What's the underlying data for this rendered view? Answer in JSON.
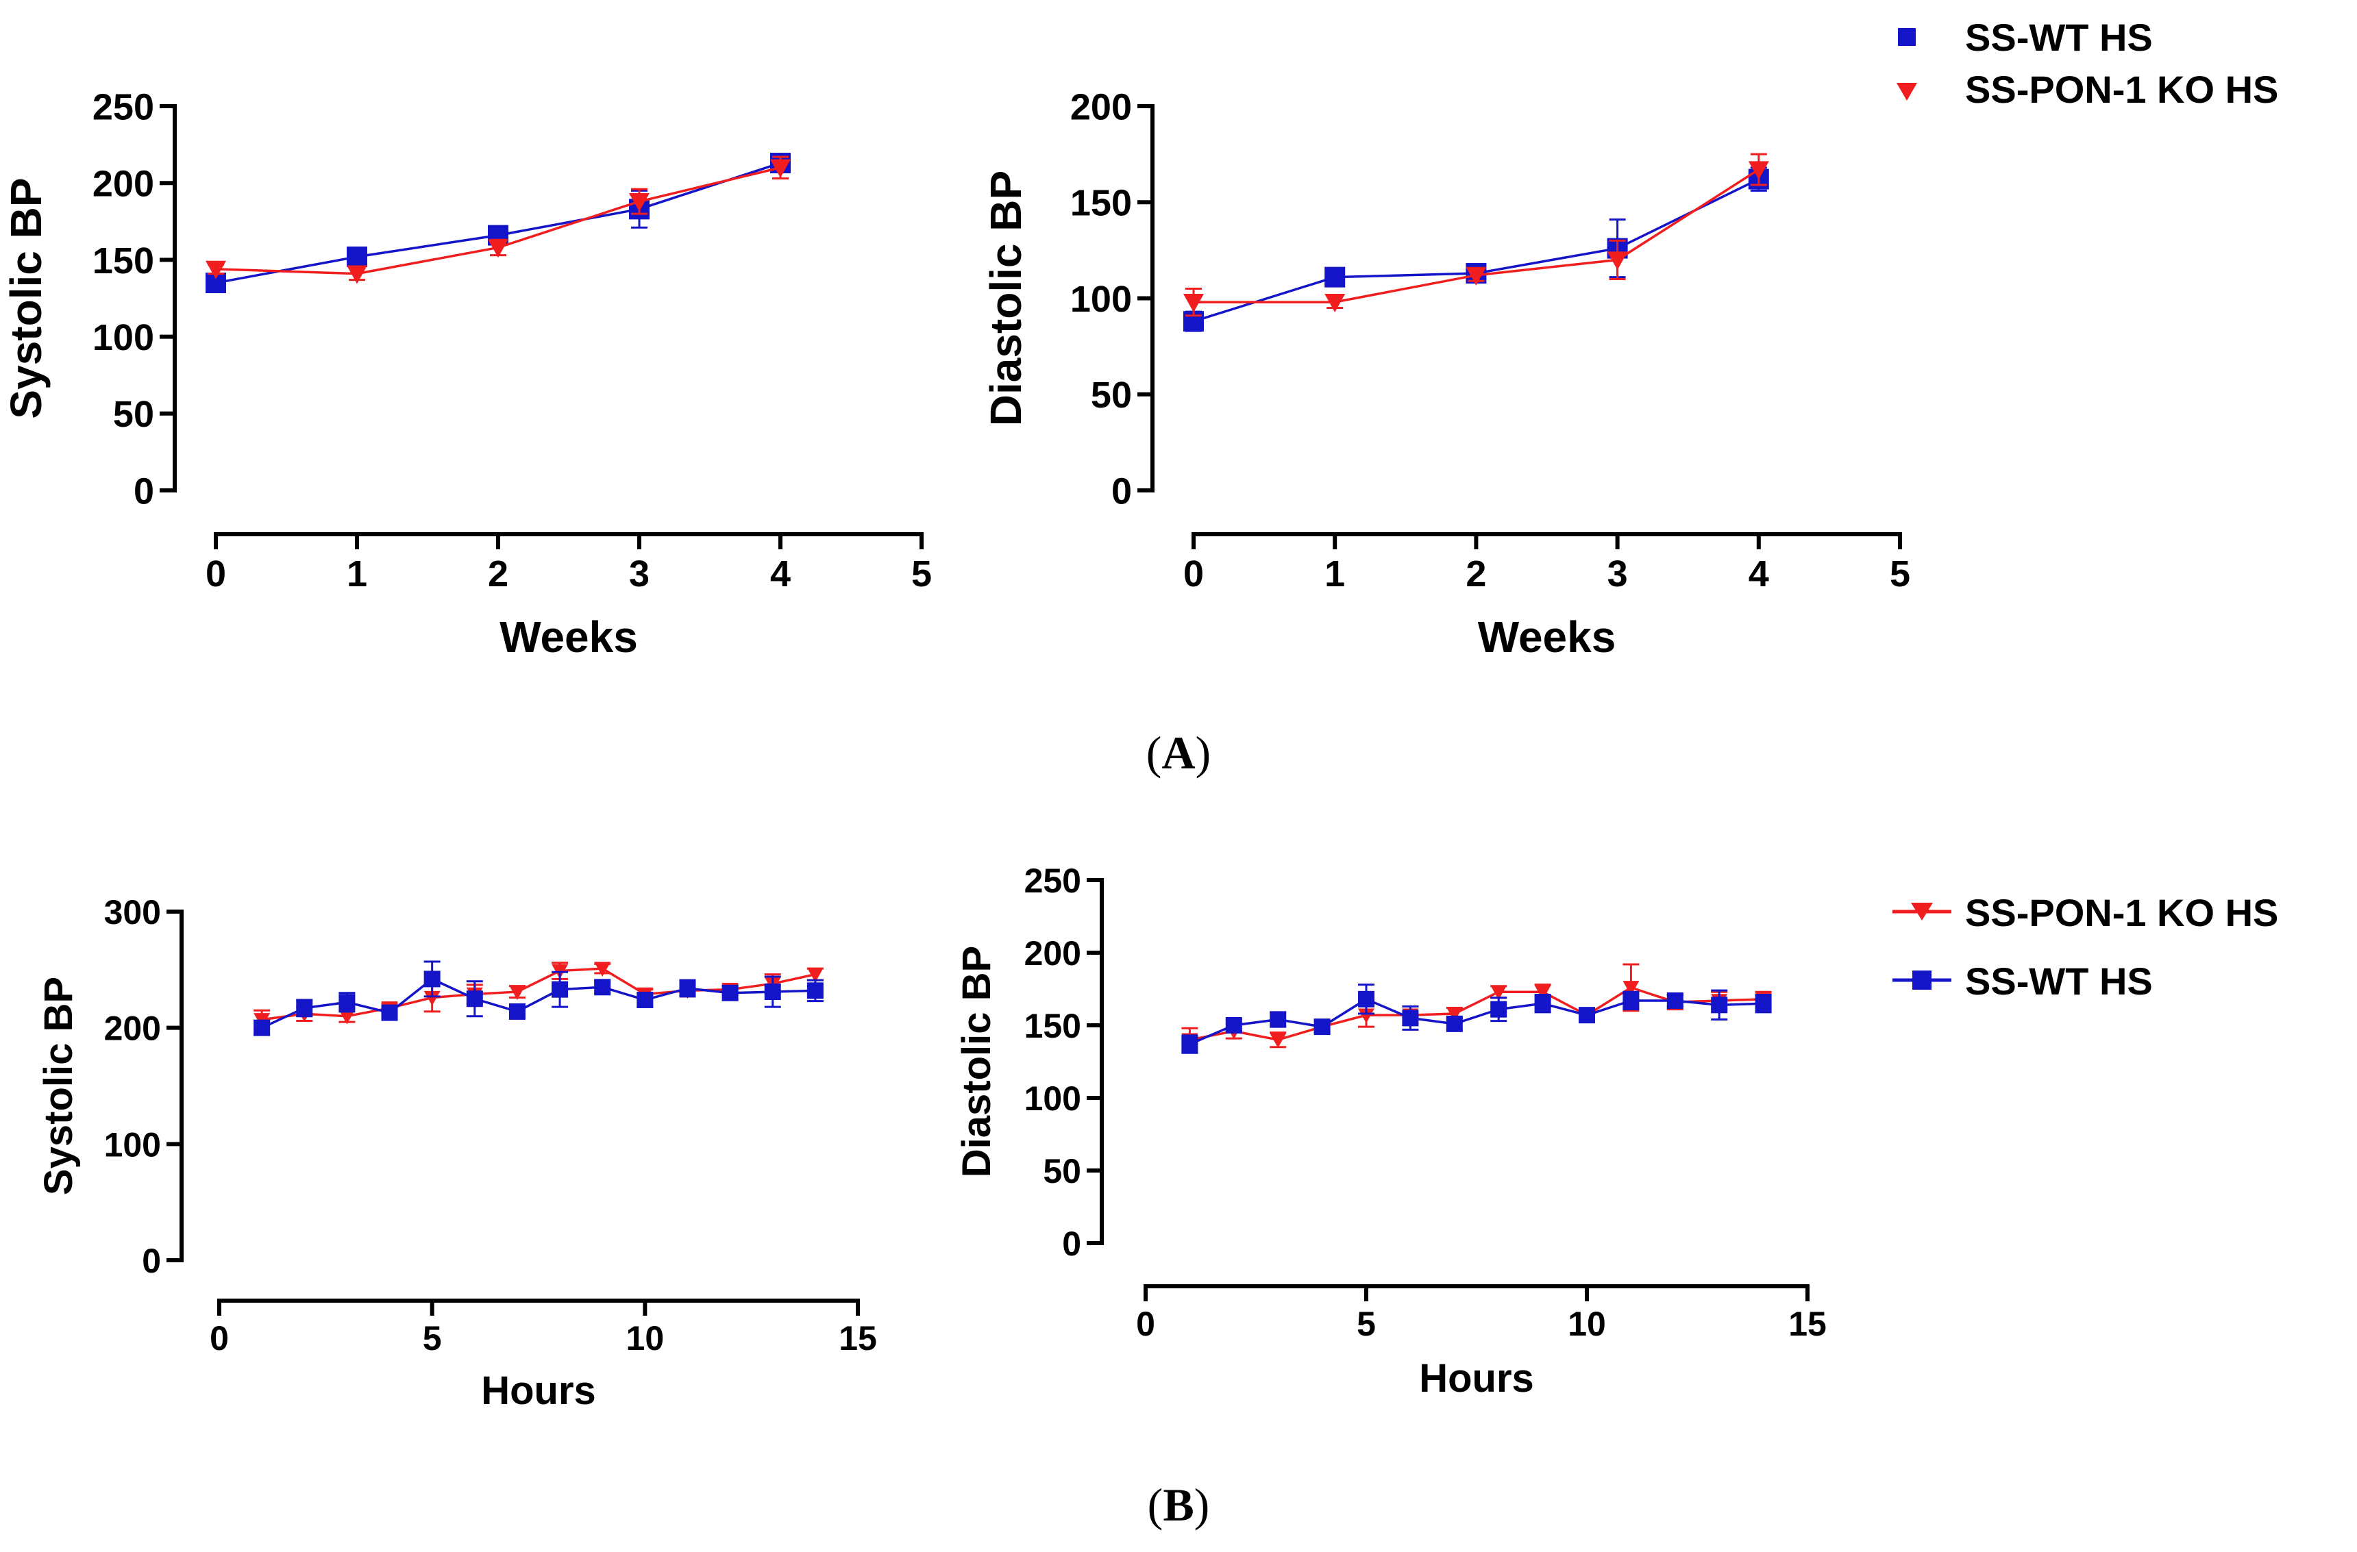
{
  "colors": {
    "wt": "#1414c8",
    "ko": "#f01e1e",
    "axis": "#000000"
  },
  "legend_top": [
    {
      "label": "SS-WT HS",
      "series": "wt",
      "marker": "square-icon"
    },
    {
      "label": "SS-PON-1 KO HS",
      "series": "ko",
      "marker": "triangle-down-icon"
    }
  ],
  "legend_bottom": [
    {
      "label": "SS-PON-1 KO HS",
      "series": "ko",
      "marker": "triangle-down-icon"
    },
    {
      "label": "SS-WT HS",
      "series": "wt",
      "marker": "square-icon"
    }
  ],
  "panel_labels": {
    "a": "A",
    "b": "B"
  },
  "chart_data": [
    {
      "id": "a-systolic",
      "type": "line",
      "title": "",
      "xlabel": "Weeks",
      "ylabel": "Systolic BP",
      "xlim": [
        0,
        5
      ],
      "ylim": [
        0,
        250
      ],
      "xticks": [
        "0",
        "1",
        "2",
        "3",
        "4",
        "5"
      ],
      "yticks": [
        "0",
        "50",
        "100",
        "150",
        "200",
        "250"
      ],
      "series": [
        {
          "name": "SS-WT HS",
          "key": "wt",
          "marker": "square",
          "x": [
            0,
            1,
            2,
            3,
            4
          ],
          "y": [
            135,
            152,
            166,
            183,
            213
          ],
          "err": [
            6,
            5,
            3,
            12,
            5
          ]
        },
        {
          "name": "SS-PON-1 KO HS",
          "key": "ko",
          "marker": "triangle-down",
          "x": [
            0,
            1,
            2,
            3,
            4
          ],
          "y": [
            144,
            141,
            158,
            188,
            210
          ],
          "err": [
            3,
            4,
            5,
            8,
            7
          ]
        }
      ]
    },
    {
      "id": "a-diastolic",
      "type": "line",
      "title": "",
      "xlabel": "Weeks",
      "ylabel": "Diastolic BP",
      "xlim": [
        0,
        5
      ],
      "ylim": [
        0,
        200
      ],
      "xticks": [
        "0",
        "1",
        "2",
        "3",
        "4",
        "5"
      ],
      "yticks": [
        "0",
        "50",
        "100",
        "150",
        "200"
      ],
      "series": [
        {
          "name": "SS-WT HS",
          "key": "wt",
          "marker": "square",
          "x": [
            0,
            1,
            2,
            3,
            4
          ],
          "y": [
            88,
            111,
            113,
            126,
            162
          ],
          "err": [
            5,
            3,
            3,
            15,
            6
          ]
        },
        {
          "name": "SS-PON-1 KO HS",
          "key": "ko",
          "marker": "triangle-down",
          "x": [
            0,
            1,
            2,
            3,
            4
          ],
          "y": [
            98,
            98,
            112,
            120,
            167
          ],
          "err": [
            7,
            3,
            3,
            10,
            8
          ]
        }
      ]
    },
    {
      "id": "b-systolic",
      "type": "line",
      "title": "",
      "xlabel": "Hours",
      "ylabel": "Systolic BP",
      "xlim": [
        0,
        15
      ],
      "ylim": [
        0,
        300
      ],
      "xticks": [
        "0",
        "5",
        "10",
        "15"
      ],
      "yticks": [
        "0",
        "100",
        "200",
        "300"
      ],
      "series": [
        {
          "name": "SS-PON-1 KO HS",
          "key": "ko",
          "marker": "triangle-down",
          "x": [
            1,
            2,
            3,
            4,
            5,
            6,
            7,
            8,
            9,
            10,
            11,
            12,
            13,
            14
          ],
          "y": [
            207,
            212,
            210,
            217,
            226,
            229,
            231,
            249,
            251,
            229,
            232,
            233,
            238,
            246
          ],
          "err": [
            8,
            6,
            5,
            4,
            12,
            8,
            5,
            7,
            4,
            4,
            5,
            4,
            8,
            5
          ]
        },
        {
          "name": "SS-WT HS",
          "key": "wt",
          "marker": "square",
          "x": [
            1,
            2,
            3,
            4,
            5,
            6,
            7,
            8,
            9,
            10,
            11,
            12,
            13,
            14
          ],
          "y": [
            200,
            217,
            222,
            213,
            242,
            225,
            214,
            233,
            235,
            224,
            234,
            230,
            231,
            232
          ],
          "err": [
            6,
            7,
            8,
            5,
            15,
            15,
            4,
            15,
            5,
            6,
            7,
            6,
            13,
            9
          ]
        }
      ]
    },
    {
      "id": "b-diastolic",
      "type": "line",
      "title": "",
      "xlabel": "Hours",
      "ylabel": "Diastolic BP",
      "xlim": [
        0,
        15
      ],
      "ylim": [
        0,
        250
      ],
      "xticks": [
        "0",
        "5",
        "10",
        "15"
      ],
      "yticks": [
        "0",
        "50",
        "100",
        "150",
        "200",
        "250"
      ],
      "series": [
        {
          "name": "SS-PON-1 KO HS",
          "key": "ko",
          "marker": "triangle-down",
          "x": [
            1,
            2,
            3,
            4,
            5,
            6,
            7,
            8,
            9,
            10,
            11,
            12,
            13,
            14
          ],
          "y": [
            140,
            146,
            140,
            149,
            157,
            157,
            158,
            173,
            173,
            157,
            176,
            166,
            167,
            168
          ],
          "err": [
            8,
            5,
            5,
            4,
            8,
            6,
            4,
            4,
            5,
            4,
            16,
            5,
            6,
            5
          ]
        },
        {
          "name": "SS-WT HS",
          "key": "wt",
          "marker": "square",
          "x": [
            1,
            2,
            3,
            4,
            5,
            6,
            7,
            8,
            9,
            10,
            11,
            12,
            13,
            14
          ],
          "y": [
            137,
            150,
            154,
            149,
            168,
            155,
            151,
            161,
            165,
            157,
            167,
            167,
            164,
            165
          ],
          "err": [
            6,
            4,
            5,
            4,
            10,
            8,
            4,
            8,
            6,
            4,
            6,
            4,
            10,
            6
          ]
        }
      ]
    }
  ]
}
